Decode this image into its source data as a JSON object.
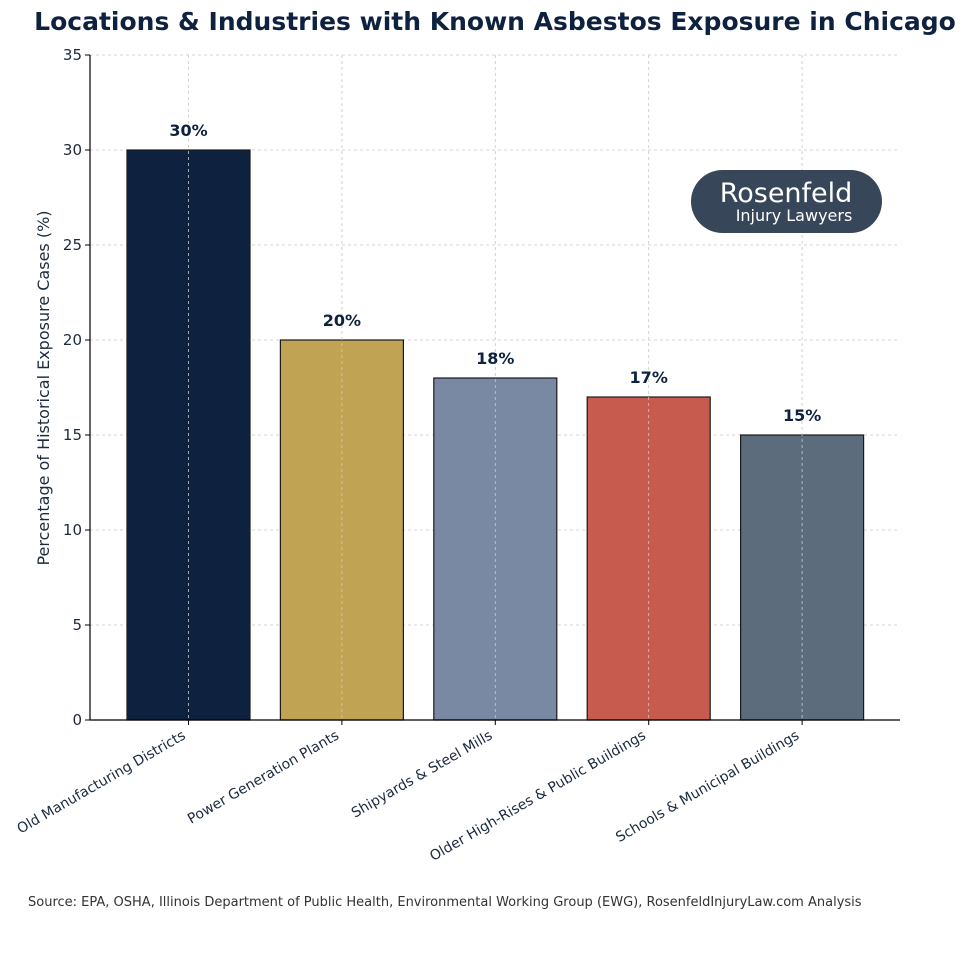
{
  "chart_data": {
    "type": "bar",
    "title": "Locations & Industries with Known Asbestos Exposure in Chicago",
    "xlabel": "",
    "ylabel": "Percentage of Historical Exposure Cases (%)",
    "ylim": [
      0,
      35
    ],
    "yticks": [
      "0",
      "5",
      "10",
      "15",
      "20",
      "25",
      "30",
      "35"
    ],
    "categories": [
      "Old Manufacturing Districts",
      "Power Generation Plants",
      "Shipyards & Steel Mills",
      "Older High-Rises & Public Buildings",
      "Schools & Municipal Buildings"
    ],
    "values": [
      30,
      20,
      18,
      17,
      15
    ],
    "data_labels": [
      "30%",
      "20%",
      "18%",
      "17%",
      "15%"
    ],
    "bar_colors": [
      "#0e2240",
      "#c0a453",
      "#7a89a3",
      "#c65b4e",
      "#5c6c7d"
    ],
    "grid": true,
    "legend": "none"
  },
  "colors": {
    "title": "#0e2240",
    "label": "#0e2240",
    "logo_bg": "#374659"
  },
  "logo": {
    "name": "Rosenfeld",
    "tagline": "Injury Lawyers"
  },
  "source": "Source: EPA, OSHA, Illinois Department of Public Health, Environmental Working Group (EWG), RosenfeldInjuryLaw.com Analysis"
}
